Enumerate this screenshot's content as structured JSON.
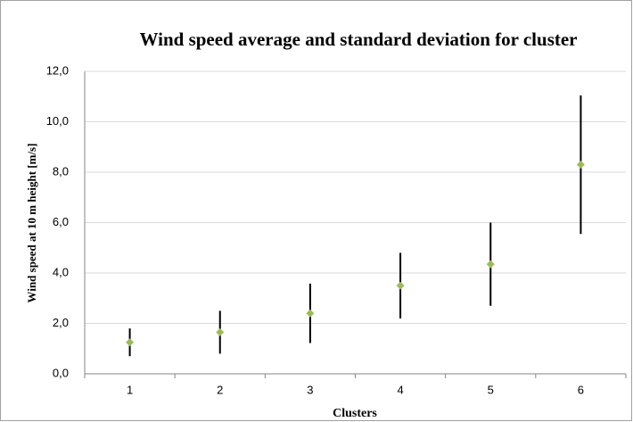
{
  "chart_data": {
    "type": "errorbar",
    "title": "Wind speed average and standard deviation for cluster",
    "x_label": "Clusters",
    "y_label": "Wind speed at 10 m height [m/s]",
    "categories": [
      "1",
      "2",
      "3",
      "4",
      "5",
      "6"
    ],
    "values": [
      1.25,
      1.65,
      2.4,
      3.5,
      4.35,
      8.3
    ],
    "errors": [
      0.55,
      0.85,
      1.18,
      1.3,
      1.65,
      2.75
    ],
    "color": "#9bbb59",
    "error_color": "#000000",
    "ylim": [
      0,
      12
    ],
    "yticks": [
      {
        "value": 0,
        "label": "0,0"
      },
      {
        "value": 2,
        "label": "2,0"
      },
      {
        "value": 4,
        "label": "4,0"
      },
      {
        "value": 6,
        "label": "6,0"
      },
      {
        "value": 8,
        "label": "8,0"
      },
      {
        "value": 10,
        "label": "10,0"
      },
      {
        "value": 12,
        "label": "12,0"
      }
    ],
    "grid": true
  }
}
